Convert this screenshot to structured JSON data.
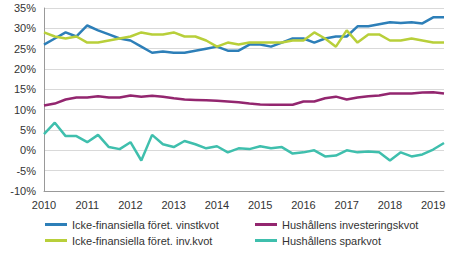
{
  "chart_data": {
    "type": "line",
    "categories": [
      "2010",
      null,
      null,
      null,
      "2011",
      null,
      null,
      null,
      "2012",
      null,
      null,
      null,
      "2013",
      null,
      null,
      null,
      "2014",
      null,
      null,
      null,
      "2015",
      null,
      null,
      null,
      "2016",
      null,
      null,
      null,
      "2017",
      null,
      null,
      null,
      "2018",
      null,
      null,
      null,
      "2019",
      null
    ],
    "series": [
      {
        "name": "Icke-finansiella föret. vinstkvot",
        "color": "#2d7fb8",
        "values": [
          26,
          27.5,
          29,
          28,
          30.7,
          29.5,
          28.5,
          27.5,
          27,
          25.5,
          24,
          24.3,
          24,
          24,
          24.5,
          25,
          25.5,
          24.5,
          24.5,
          26,
          26,
          25.5,
          26.5,
          27.5,
          27.5,
          26.5,
          27.5,
          28,
          28,
          30.5,
          30.5,
          31,
          31.5,
          31.3,
          31.5,
          31.2,
          32.7,
          32.7
        ]
      },
      {
        "name": "Icke-finansiella föret. inv.kvot",
        "color": "#b8cf3a",
        "values": [
          29,
          28,
          27.5,
          28,
          26.5,
          26.5,
          27,
          27.5,
          28,
          29,
          28.5,
          28.5,
          29,
          28,
          28,
          27,
          25.5,
          26.5,
          26,
          26.5,
          26.5,
          26.5,
          26.5,
          27,
          27,
          29,
          27.5,
          25.5,
          29.5,
          26.5,
          28.5,
          28.5,
          27,
          27,
          27.5,
          27,
          26.5,
          26.5
        ]
      },
      {
        "name": "Hushållens investeringskvot",
        "color": "#93266f",
        "values": [
          11,
          11.5,
          12.5,
          13,
          13,
          13.3,
          13,
          13,
          13.5,
          13.2,
          13.4,
          13.2,
          12.8,
          12.5,
          12.4,
          12.3,
          12.2,
          12,
          11.8,
          11.5,
          11.3,
          11.2,
          11.2,
          11.2,
          12,
          12,
          12.8,
          13.2,
          12.5,
          13,
          13.3,
          13.5,
          14,
          14,
          14,
          14.2,
          14.3,
          14
        ]
      },
      {
        "name": "Hushållens sparkvot",
        "color": "#3fbfad",
        "values": [
          4,
          6.8,
          3.5,
          3.5,
          2,
          3.8,
          0.8,
          0.3,
          2,
          -2.5,
          3.8,
          1.5,
          0.8,
          2.3,
          1.5,
          0.5,
          1,
          -0.5,
          0.5,
          0.3,
          1,
          0.5,
          0.8,
          -0.8,
          -0.5,
          0,
          -1.5,
          -1.3,
          0,
          -0.5,
          -0.3,
          -0.5,
          -2.5,
          -0.5,
          -1.5,
          -1,
          0.2,
          1.8
        ]
      }
    ],
    "ylim": [
      -10,
      35
    ],
    "yticks": [
      {
        "value": -10,
        "label": "-10%"
      },
      {
        "value": -5,
        "label": "-5%"
      },
      {
        "value": 0,
        "label": "0%"
      },
      {
        "value": 5,
        "label": "5%"
      },
      {
        "value": 10,
        "label": "10%"
      },
      {
        "value": 15,
        "label": "15%"
      },
      {
        "value": 20,
        "label": "20%"
      },
      {
        "value": 25,
        "label": "25%"
      },
      {
        "value": 30,
        "label": "30%"
      },
      {
        "value": 35,
        "label": "35%"
      }
    ],
    "grid": true,
    "legend": "bottom"
  }
}
